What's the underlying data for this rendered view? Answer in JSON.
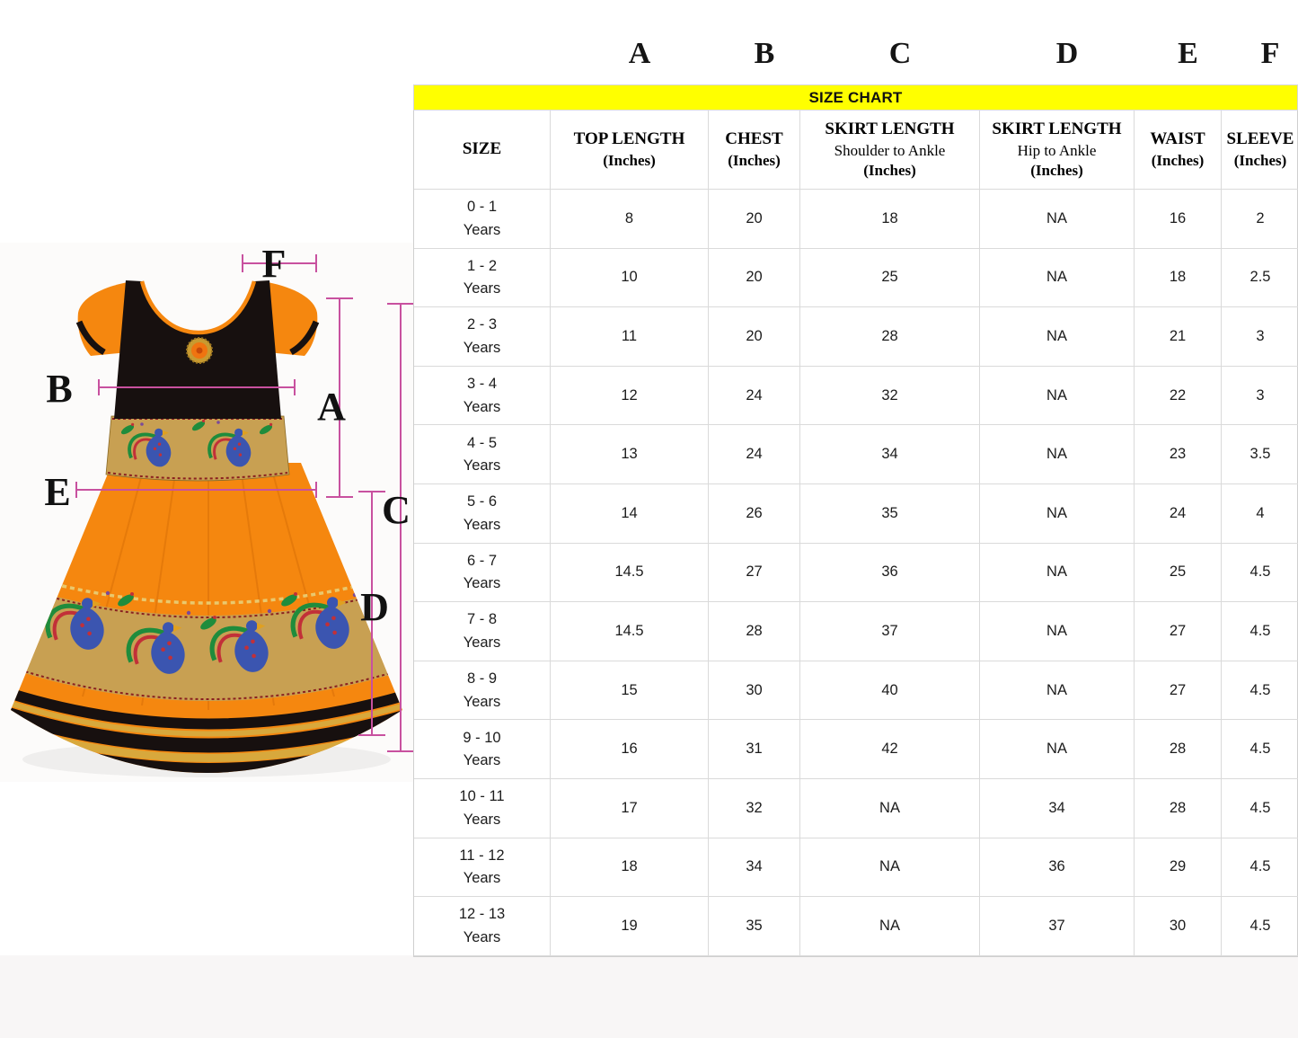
{
  "chart_data": {
    "type": "table",
    "title": "SIZE CHART",
    "size_header": "SIZE",
    "columns": [
      {
        "letter": "A",
        "title": "TOP LENGTH",
        "subtitle": "",
        "unit": "(Inches)"
      },
      {
        "letter": "B",
        "title": "CHEST",
        "subtitle": "",
        "unit": "(Inches)"
      },
      {
        "letter": "C",
        "title": "SKIRT LENGTH",
        "subtitle": "Shoulder to Ankle",
        "unit": "(Inches)"
      },
      {
        "letter": "D",
        "title": "SKIRT LENGTH",
        "subtitle": "Hip to Ankle",
        "unit": "(Inches)"
      },
      {
        "letter": "E",
        "title": "WAIST",
        "subtitle": "",
        "unit": "(Inches)"
      },
      {
        "letter": "F",
        "title": "SLEEVE",
        "subtitle": "",
        "unit": "(Inches)"
      }
    ],
    "rows": [
      {
        "age": "0 - 1",
        "suffix": "Years",
        "values": [
          "8",
          "20",
          "18",
          "NA",
          "16",
          "2"
        ]
      },
      {
        "age": "1 - 2",
        "suffix": "Years",
        "values": [
          "10",
          "20",
          "25",
          "NA",
          "18",
          "2.5"
        ]
      },
      {
        "age": "2 - 3",
        "suffix": "Years",
        "values": [
          "11",
          "20",
          "28",
          "NA",
          "21",
          "3"
        ]
      },
      {
        "age": "3 - 4",
        "suffix": "Years",
        "values": [
          "12",
          "24",
          "32",
          "NA",
          "22",
          "3"
        ]
      },
      {
        "age": "4 - 5",
        "suffix": "Years",
        "values": [
          "13",
          "24",
          "34",
          "NA",
          "23",
          "3.5"
        ]
      },
      {
        "age": "5 - 6",
        "suffix": "Years",
        "values": [
          "14",
          "26",
          "35",
          "NA",
          "24",
          "4"
        ]
      },
      {
        "age": "6 - 7",
        "suffix": "Years",
        "values": [
          "14.5",
          "27",
          "36",
          "NA",
          "25",
          "4.5"
        ]
      },
      {
        "age": "7 - 8",
        "suffix": "Years",
        "values": [
          "14.5",
          "28",
          "37",
          "NA",
          "27",
          "4.5"
        ]
      },
      {
        "age": "8 - 9",
        "suffix": "Years",
        "values": [
          "15",
          "30",
          "40",
          "NA",
          "27",
          "4.5"
        ]
      },
      {
        "age": "9 - 10",
        "suffix": "Years",
        "values": [
          "16",
          "31",
          "42",
          "NA",
          "28",
          "4.5"
        ]
      },
      {
        "age": "10 - 11",
        "suffix": "Years",
        "values": [
          "17",
          "32",
          "NA",
          "34",
          "28",
          "4.5"
        ]
      },
      {
        "age": "11 - 12",
        "suffix": "Years",
        "values": [
          "18",
          "34",
          "NA",
          "36",
          "29",
          "4.5"
        ]
      },
      {
        "age": "12 - 13",
        "suffix": "Years",
        "values": [
          "19",
          "35",
          "NA",
          "37",
          "30",
          "4.5"
        ]
      }
    ]
  },
  "diagram": {
    "letters": {
      "a": "A",
      "b": "B",
      "c": "C",
      "d": "D",
      "e": "E",
      "f": "F"
    }
  },
  "colors": {
    "banner_bg": "#ffff00",
    "measure_line": "#c8519f",
    "dress_orange": "#f5870f",
    "dress_black": "#17100f",
    "band_gold": "#c8a052"
  }
}
